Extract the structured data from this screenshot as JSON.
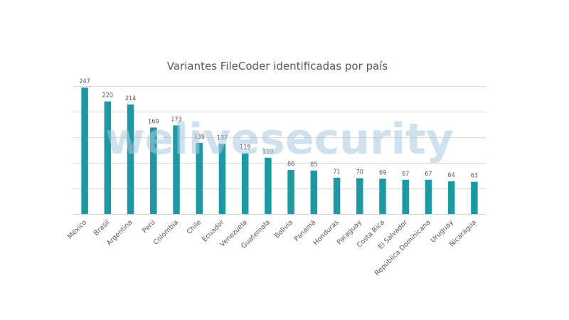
{
  "chart_data": {
    "type": "bar",
    "title": "Variantes FileCoder identificadas por país",
    "xlabel": "",
    "ylabel": "",
    "categories": [
      "México",
      "Brasil",
      "Argentina",
      "Perú",
      "Colombia",
      "Chile",
      "Ecuador",
      "Venezuela",
      "Guatemala",
      "Bolivia",
      "Panamá",
      "Honduras",
      "Paraguay",
      "Costa Rica",
      "El Salvador",
      "República Dominicana",
      "Uruguay",
      "Nicaragua"
    ],
    "values": [
      247,
      220,
      214,
      169,
      173,
      139,
      137,
      119,
      110,
      86,
      85,
      71,
      70,
      69,
      67,
      67,
      64,
      63
    ],
    "ylim": [
      0,
      250
    ],
    "gridlines": [
      0,
      50,
      100,
      150,
      200,
      250
    ],
    "bar_color": "#1b9aa6",
    "grid": true,
    "legend": "none"
  },
  "watermark": "welivesecurity"
}
